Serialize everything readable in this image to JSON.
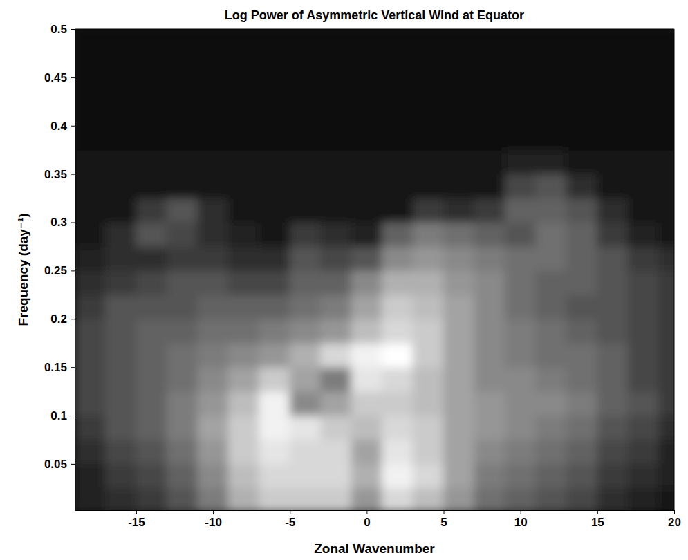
{
  "chart_data": {
    "type": "heatmap",
    "title": "Log Power of Asymmetric Vertical Wind at Equator",
    "x_label": "Zonal Wavenumber",
    "y_label": "Frequency (day⁻¹)",
    "xlim": [
      -19,
      20
    ],
    "ylim": [
      0.002,
      0.5
    ],
    "xticks": [
      -15,
      -10,
      -5,
      0,
      5,
      10,
      15,
      20
    ],
    "yticks": [
      0.05,
      0.1,
      0.15,
      0.2,
      0.25,
      0.3,
      0.35,
      0.4,
      0.45,
      0.5
    ],
    "x": [
      -18,
      -16,
      -14,
      -12,
      -10,
      -8,
      -6,
      -4,
      -2,
      0,
      2,
      4,
      6,
      8,
      10,
      12,
      14,
      16,
      18,
      20
    ],
    "y": [
      0.0125,
      0.0375,
      0.0625,
      0.0875,
      0.1125,
      0.1375,
      0.1625,
      0.1875,
      0.2125,
      0.2375,
      0.2625,
      0.2875,
      0.3125,
      0.3375,
      0.3625,
      0.3875,
      0.4125,
      0.4375,
      0.4625,
      0.4875
    ],
    "values": [
      [
        0.1,
        0.15,
        0.2,
        0.3,
        0.45,
        0.65,
        0.75,
        0.75,
        0.75,
        0.55,
        0.8,
        0.7,
        0.55,
        0.4,
        0.35,
        0.3,
        0.25,
        0.15,
        0.1,
        0.05
      ],
      [
        0.1,
        0.2,
        0.25,
        0.35,
        0.5,
        0.7,
        0.8,
        0.8,
        0.8,
        0.65,
        0.9,
        0.8,
        0.6,
        0.45,
        0.4,
        0.35,
        0.3,
        0.2,
        0.15,
        0.1
      ],
      [
        0.15,
        0.25,
        0.3,
        0.4,
        0.55,
        0.75,
        0.85,
        0.8,
        0.8,
        0.6,
        0.85,
        0.75,
        0.6,
        0.5,
        0.45,
        0.4,
        0.35,
        0.25,
        0.2,
        0.1
      ],
      [
        0.2,
        0.3,
        0.35,
        0.45,
        0.6,
        0.75,
        0.9,
        0.85,
        0.75,
        0.7,
        0.8,
        0.75,
        0.6,
        0.55,
        0.5,
        0.45,
        0.4,
        0.3,
        0.25,
        0.15
      ],
      [
        0.25,
        0.3,
        0.35,
        0.45,
        0.55,
        0.7,
        0.9,
        0.5,
        0.6,
        0.75,
        0.75,
        0.7,
        0.6,
        0.55,
        0.5,
        0.5,
        0.45,
        0.35,
        0.3,
        0.2
      ],
      [
        0.25,
        0.3,
        0.35,
        0.4,
        0.5,
        0.6,
        0.75,
        0.6,
        0.45,
        0.85,
        0.8,
        0.7,
        0.6,
        0.5,
        0.5,
        0.45,
        0.4,
        0.35,
        0.25,
        0.2
      ],
      [
        0.25,
        0.3,
        0.35,
        0.4,
        0.45,
        0.5,
        0.55,
        0.65,
        0.8,
        0.9,
        0.95,
        0.75,
        0.6,
        0.5,
        0.45,
        0.4,
        0.4,
        0.35,
        0.25,
        0.2
      ],
      [
        0.25,
        0.3,
        0.35,
        0.35,
        0.4,
        0.4,
        0.45,
        0.5,
        0.55,
        0.7,
        0.8,
        0.75,
        0.6,
        0.5,
        0.45,
        0.4,
        0.35,
        0.3,
        0.25,
        0.2
      ],
      [
        0.2,
        0.3,
        0.3,
        0.3,
        0.35,
        0.35,
        0.35,
        0.4,
        0.45,
        0.6,
        0.75,
        0.7,
        0.6,
        0.5,
        0.4,
        0.35,
        0.3,
        0.3,
        0.25,
        0.2
      ],
      [
        0.15,
        0.2,
        0.25,
        0.3,
        0.3,
        0.25,
        0.25,
        0.35,
        0.35,
        0.5,
        0.65,
        0.65,
        0.55,
        0.5,
        0.4,
        0.35,
        0.35,
        0.3,
        0.25,
        0.2
      ],
      [
        0.1,
        0.15,
        0.15,
        0.2,
        0.2,
        0.15,
        0.15,
        0.3,
        0.25,
        0.3,
        0.5,
        0.55,
        0.5,
        0.45,
        0.4,
        0.4,
        0.35,
        0.3,
        0.2,
        0.15
      ],
      [
        0.05,
        0.15,
        0.3,
        0.25,
        0.15,
        0.1,
        0.05,
        0.2,
        0.15,
        0.1,
        0.35,
        0.45,
        0.4,
        0.35,
        0.3,
        0.4,
        0.35,
        0.2,
        0.1,
        0.05
      ],
      [
        0.05,
        0.05,
        0.2,
        0.3,
        0.15,
        0.05,
        0.05,
        0.05,
        0.05,
        0.05,
        0.05,
        0.2,
        0.15,
        0.2,
        0.35,
        0.35,
        0.3,
        0.15,
        0.05,
        0.05
      ],
      [
        0.05,
        0.05,
        0.05,
        0.05,
        0.05,
        0.05,
        0.05,
        0.05,
        0.05,
        0.05,
        0.05,
        0.05,
        0.05,
        0.05,
        0.25,
        0.3,
        0.15,
        0.05,
        0.05,
        0.05
      ],
      [
        0.05,
        0.05,
        0.05,
        0.05,
        0.05,
        0.05,
        0.05,
        0.05,
        0.05,
        0.05,
        0.05,
        0.05,
        0.05,
        0.05,
        0.1,
        0.1,
        0.05,
        0.05,
        0.05,
        0.05
      ],
      [
        0.03,
        0.03,
        0.03,
        0.03,
        0.03,
        0.03,
        0.03,
        0.03,
        0.03,
        0.03,
        0.03,
        0.03,
        0.03,
        0.03,
        0.03,
        0.03,
        0.03,
        0.03,
        0.03,
        0.03
      ],
      [
        0.03,
        0.03,
        0.03,
        0.03,
        0.03,
        0.03,
        0.03,
        0.03,
        0.03,
        0.03,
        0.03,
        0.03,
        0.03,
        0.03,
        0.03,
        0.03,
        0.03,
        0.03,
        0.03,
        0.03
      ],
      [
        0.03,
        0.03,
        0.03,
        0.03,
        0.03,
        0.03,
        0.03,
        0.03,
        0.03,
        0.03,
        0.03,
        0.03,
        0.03,
        0.03,
        0.03,
        0.03,
        0.03,
        0.03,
        0.03,
        0.03
      ],
      [
        0.02,
        0.02,
        0.02,
        0.02,
        0.02,
        0.02,
        0.02,
        0.02,
        0.02,
        0.02,
        0.02,
        0.02,
        0.02,
        0.02,
        0.02,
        0.02,
        0.02,
        0.02,
        0.02,
        0.02
      ],
      [
        0.02,
        0.02,
        0.02,
        0.02,
        0.02,
        0.02,
        0.02,
        0.02,
        0.02,
        0.02,
        0.02,
        0.02,
        0.02,
        0.02,
        0.02,
        0.02,
        0.02,
        0.02,
        0.02,
        0.02
      ]
    ]
  }
}
